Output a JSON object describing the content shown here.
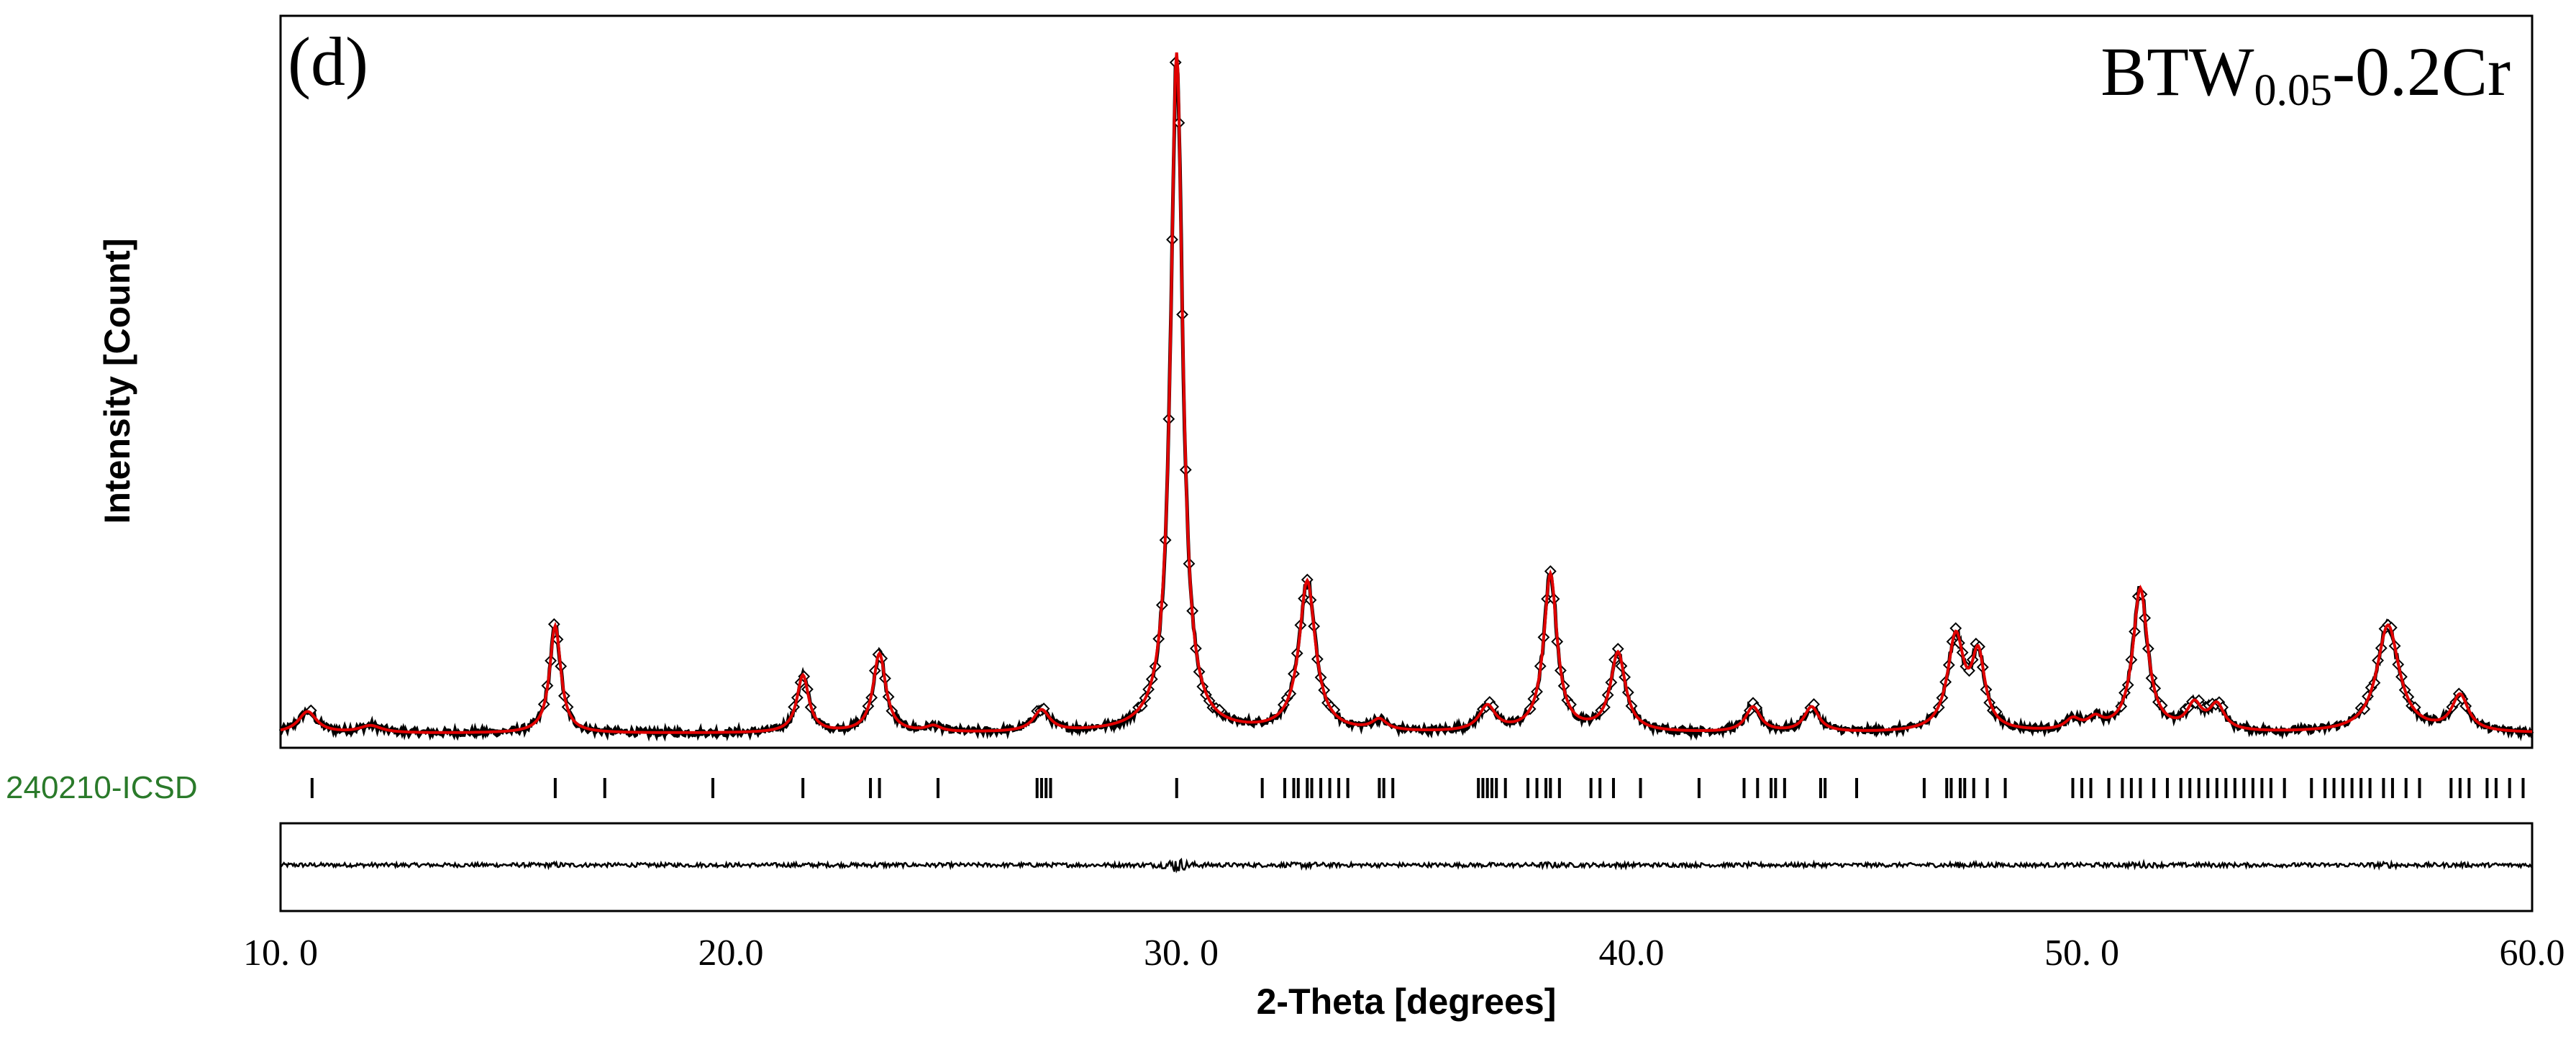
{
  "chart_data": {
    "type": "line",
    "panel_label": "(d)",
    "sample_label": {
      "main": "BTW",
      "sub": "0.05",
      "suffix": "-0.2Cr"
    },
    "xlabel": "2-Theta [degrees]",
    "ylabel": "Intensity [Count]",
    "xlim": [
      10.0,
      60.0
    ],
    "ylim": [
      0,
      100
    ],
    "x_ticks": [
      10.0,
      20.0,
      30.0,
      40.0,
      50.0,
      60.0
    ],
    "x_tick_labels": [
      "10. 0",
      "20.0",
      "30. 0",
      "40.0",
      "50. 0",
      "60.0"
    ],
    "background_level": 1.5,
    "series": [
      {
        "name": "Observed",
        "style": "markers",
        "color": "#000000"
      },
      {
        "name": "Calculated",
        "style": "line",
        "color": "#e00000"
      },
      {
        "name": "Difference",
        "style": "line",
        "color": "#000000"
      }
    ],
    "peaks": [
      {
        "two_theta": 10.6,
        "intensity": 3,
        "width": 0.25
      },
      {
        "two_theta": 12.0,
        "intensity": 1,
        "width": 0.3
      },
      {
        "two_theta": 16.1,
        "intensity": 15,
        "width": 0.15
      },
      {
        "two_theta": 21.6,
        "intensity": 8,
        "width": 0.16
      },
      {
        "two_theta": 23.3,
        "intensity": 11,
        "width": 0.17
      },
      {
        "two_theta": 24.5,
        "intensity": 0.8,
        "width": 0.2
      },
      {
        "two_theta": 26.9,
        "intensity": 3,
        "width": 0.22
      },
      {
        "two_theta": 29.9,
        "intensity": 95,
        "width": 0.16
      },
      {
        "two_theta": 32.8,
        "intensity": 21,
        "width": 0.22
      },
      {
        "two_theta": 34.4,
        "intensity": 1.5,
        "width": 0.2
      },
      {
        "two_theta": 36.8,
        "intensity": 3.5,
        "width": 0.22
      },
      {
        "two_theta": 38.2,
        "intensity": 22,
        "width": 0.18
      },
      {
        "two_theta": 39.7,
        "intensity": 11,
        "width": 0.2
      },
      {
        "two_theta": 42.7,
        "intensity": 3.5,
        "width": 0.2
      },
      {
        "two_theta": 44.0,
        "intensity": 3.5,
        "width": 0.2
      },
      {
        "two_theta": 47.2,
        "intensity": 13,
        "width": 0.22
      },
      {
        "two_theta": 47.7,
        "intensity": 10,
        "width": 0.18
      },
      {
        "two_theta": 49.8,
        "intensity": 1.5,
        "width": 0.2
      },
      {
        "two_theta": 50.3,
        "intensity": 1.5,
        "width": 0.2
      },
      {
        "two_theta": 51.3,
        "intensity": 20,
        "width": 0.2
      },
      {
        "two_theta": 52.5,
        "intensity": 3.5,
        "width": 0.2
      },
      {
        "two_theta": 53.0,
        "intensity": 3.5,
        "width": 0.2
      },
      {
        "two_theta": 56.8,
        "intensity": 15,
        "width": 0.3
      },
      {
        "two_theta": 58.4,
        "intensity": 5,
        "width": 0.22
      }
    ],
    "reference": {
      "label": "240210-ICSD",
      "color": "#2a7a2a",
      "positions": [
        10.7,
        16.1,
        17.2,
        19.6,
        21.6,
        23.1,
        23.3,
        24.6,
        26.8,
        26.9,
        27.0,
        27.1,
        29.9,
        31.8,
        32.3,
        32.5,
        32.6,
        32.8,
        32.9,
        33.1,
        33.3,
        33.5,
        33.7,
        34.4,
        34.5,
        34.7,
        36.6,
        36.7,
        36.8,
        36.9,
        37.0,
        37.2,
        37.7,
        37.9,
        38.1,
        38.2,
        38.4,
        39.1,
        39.3,
        39.6,
        40.2,
        41.5,
        42.5,
        42.8,
        43.1,
        43.2,
        43.4,
        44.2,
        44.3,
        45.0,
        46.5,
        47.0,
        47.1,
        47.3,
        47.4,
        47.6,
        47.9,
        48.3,
        49.8,
        50.0,
        50.2,
        50.6,
        50.9,
        51.1,
        51.3,
        51.6,
        51.9,
        52.2,
        52.4,
        52.6,
        52.8,
        53.0,
        53.2,
        53.4,
        53.6,
        53.8,
        54.0,
        54.2,
        54.5,
        55.1,
        55.4,
        55.6,
        55.8,
        56.0,
        56.2,
        56.4,
        56.7,
        56.9,
        57.2,
        57.5,
        58.2,
        58.4,
        58.6,
        59.0,
        59.2,
        59.5,
        59.8
      ]
    }
  }
}
